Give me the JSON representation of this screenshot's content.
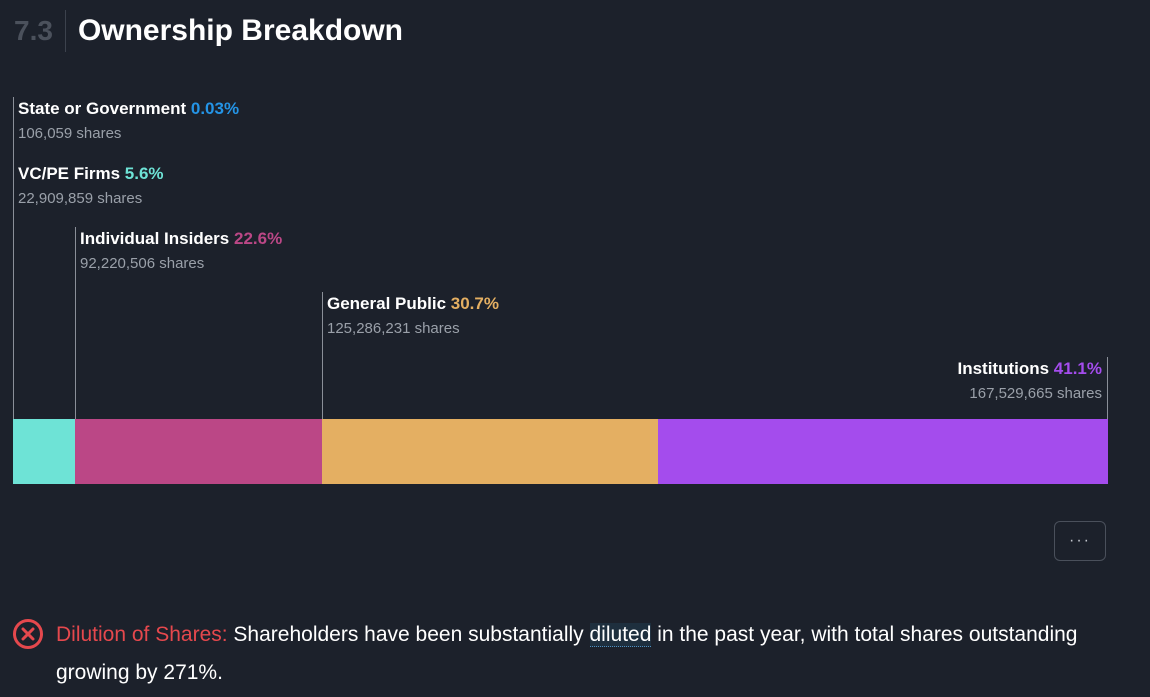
{
  "section": {
    "number": "7.3",
    "title": "Ownership Breakdown"
  },
  "chart_data": {
    "type": "bar",
    "orientation": "horizontal-stacked-100",
    "title": "Ownership Breakdown",
    "categories": [
      "State or Government",
      "VC/PE Firms",
      "Individual Insiders",
      "General Public",
      "Institutions"
    ],
    "values": [
      0.03,
      5.6,
      22.6,
      30.7,
      41.1
    ],
    "value_labels": [
      "0.03%",
      "5.6%",
      "22.6%",
      "30.7%",
      "41.1%"
    ],
    "shares": [
      "106,059 shares",
      "22,909,859 shares",
      "92,220,506 shares",
      "125,286,231 shares",
      "167,529,665 shares"
    ],
    "colors": [
      "#2494e6",
      "#6ee3d6",
      "#bb4786",
      "#e4af62",
      "#a44ced"
    ],
    "unit": "%",
    "xlim": [
      0,
      100
    ]
  },
  "more_button": {
    "label": "···"
  },
  "risk": {
    "icon": "error-circle-x-icon",
    "label": "Dilution of Shares:",
    "text_before": " Shareholders have been substantially ",
    "highlight": "diluted",
    "text_after": " in the past year, with total shares outstanding growing by 271%.",
    "color": "#e5484d"
  }
}
